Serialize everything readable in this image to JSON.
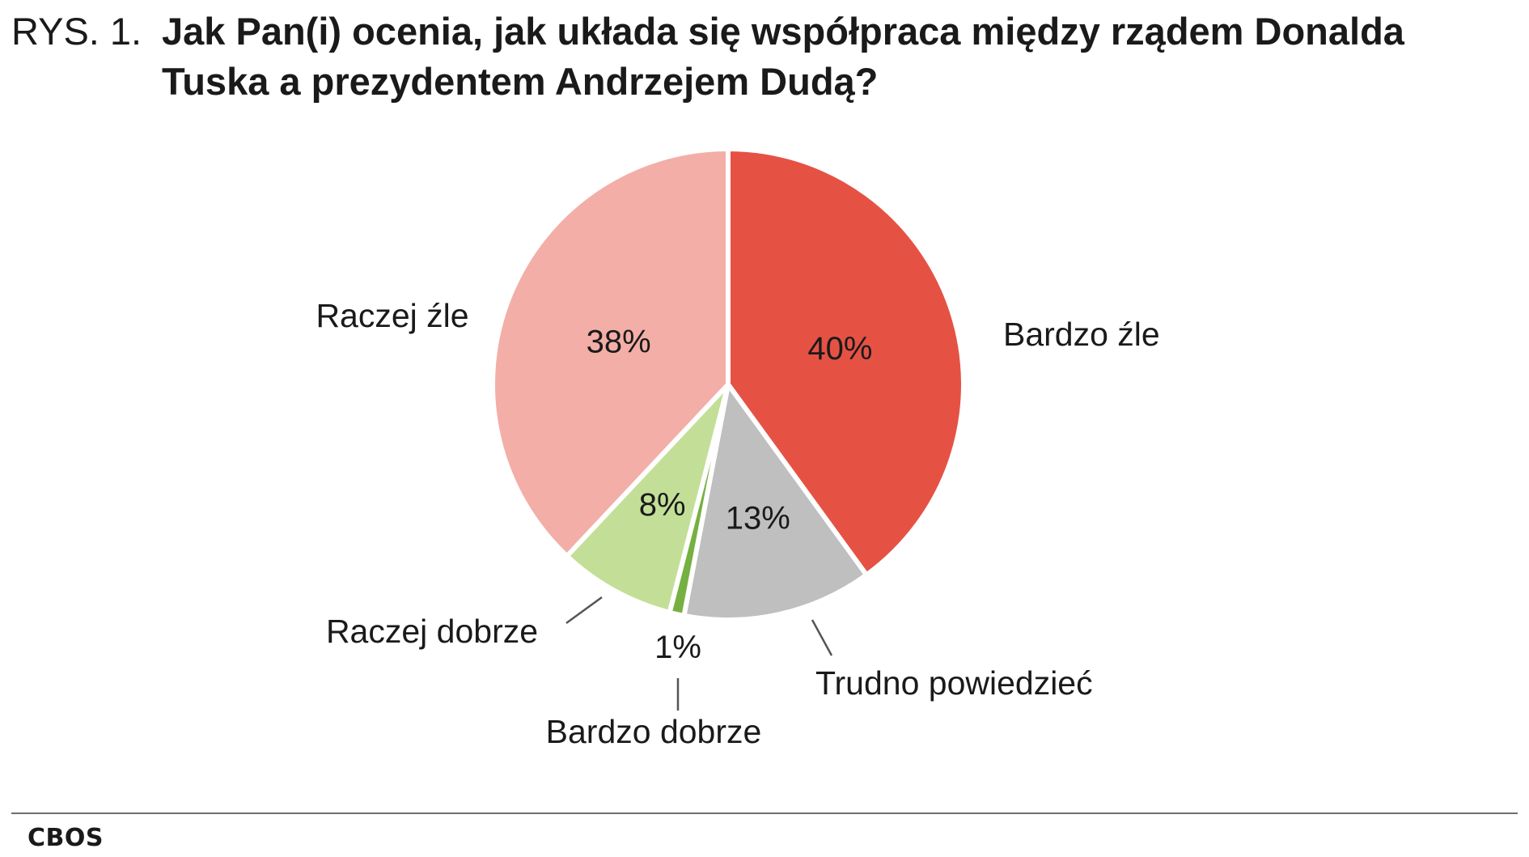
{
  "figure": {
    "number": "RYS. 1.",
    "title": "Jak Pan(i) ocenia, jak układa się współpraca między rządem Donalda Tuska a prezydentem Andrzejem Dudą?",
    "source": "CBOS"
  },
  "chart_data": {
    "type": "pie",
    "start": "12 o'clock",
    "direction": "clockwise",
    "slices": [
      {
        "name": "Bardzo źle",
        "value": 40,
        "label": "40%",
        "color": "#e55244"
      },
      {
        "name": "Trudno powiedzieć",
        "value": 13,
        "label": "13%",
        "color": "#bfbfbf"
      },
      {
        "name": "Bardzo dobrze",
        "value": 1,
        "label": "1%",
        "color": "#76b041"
      },
      {
        "name": "Raczej dobrze",
        "value": 8,
        "label": "8%",
        "color": "#c3df97"
      },
      {
        "name": "Raczej źle",
        "value": 38,
        "label": "38%",
        "color": "#f3aea7"
      }
    ]
  }
}
